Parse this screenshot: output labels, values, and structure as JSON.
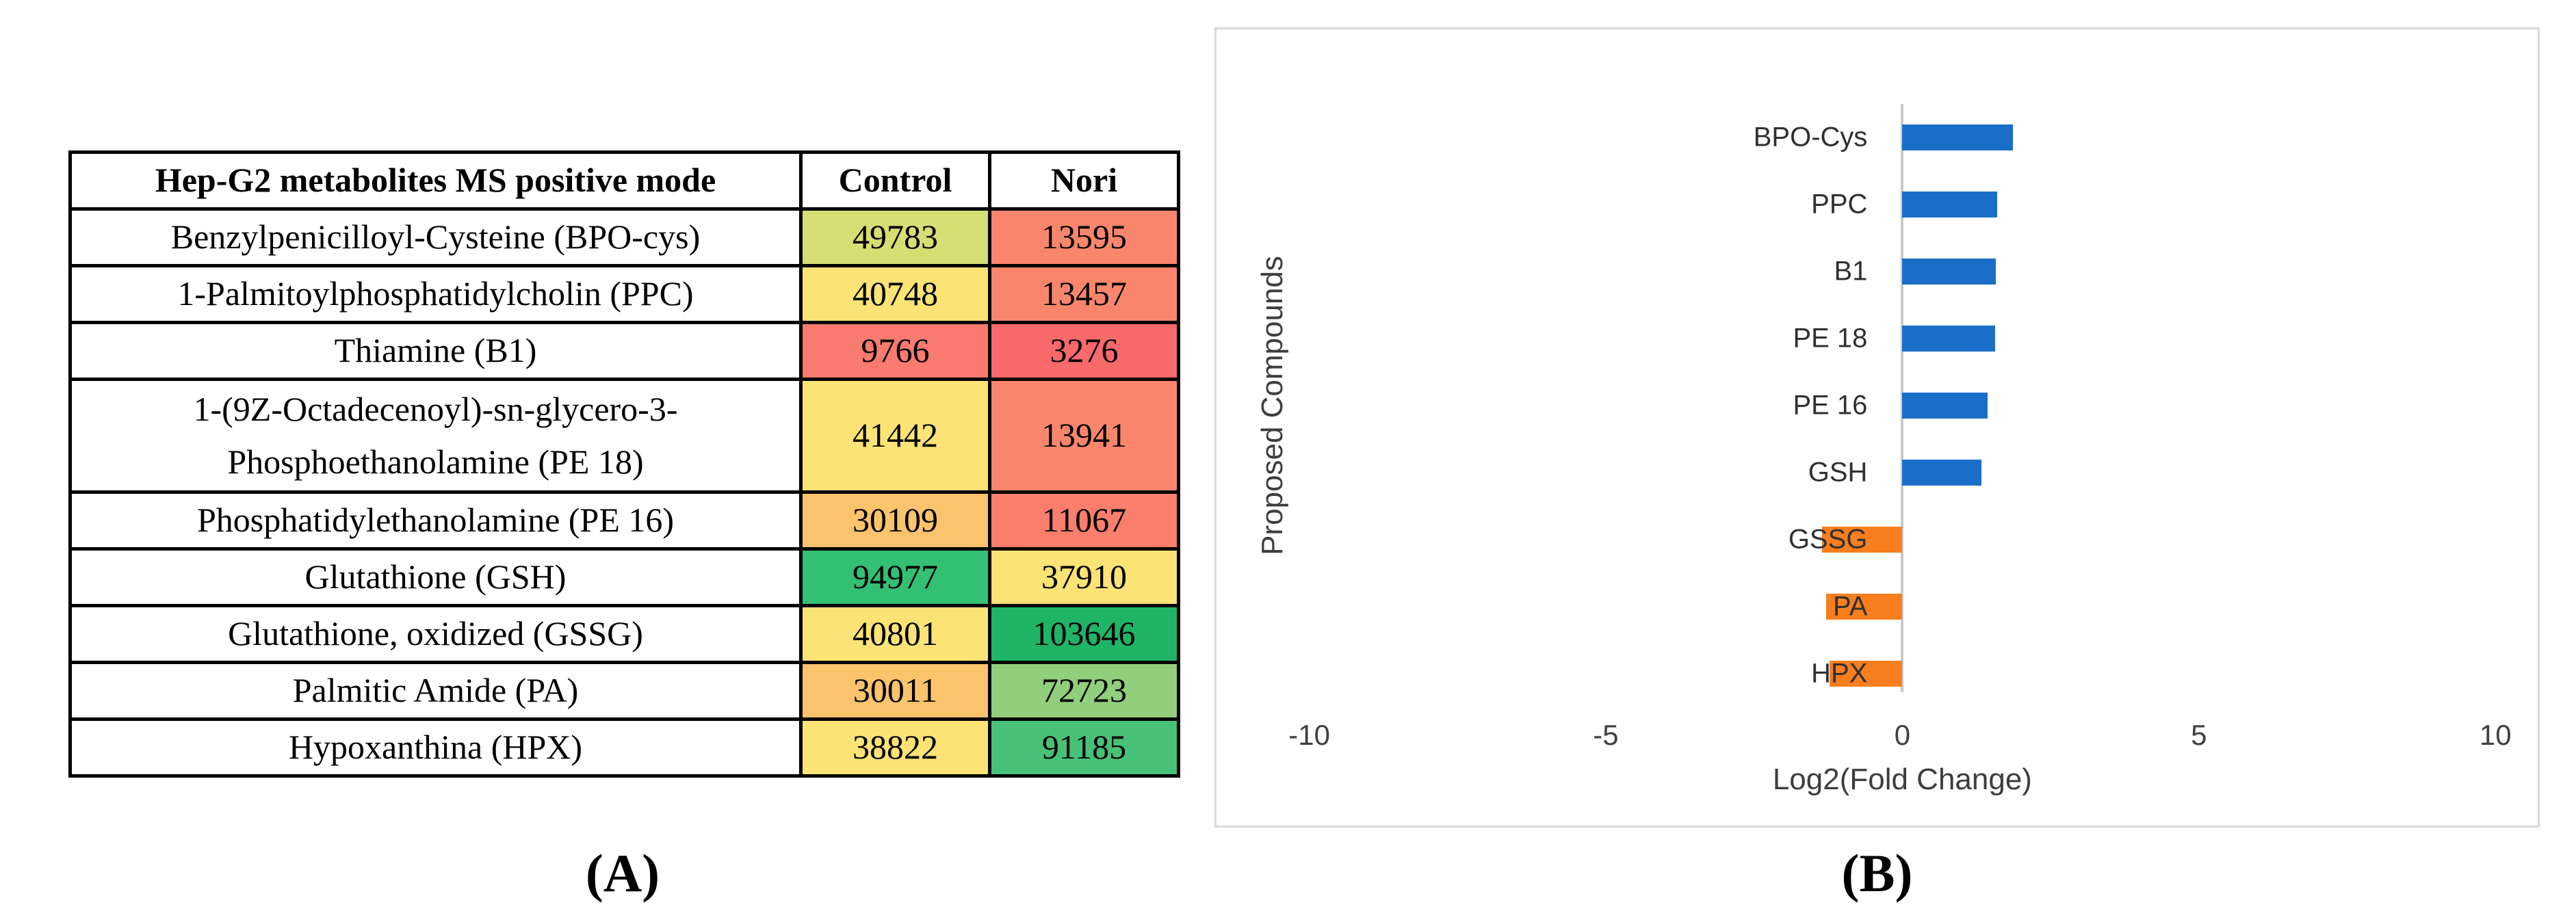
{
  "figure": {
    "panel_a": {
      "caption": "(A)",
      "table": {
        "headers": [
          "Hep-G2 metabolites MS positive mode",
          "Control",
          "Nori"
        ],
        "rows": [
          {
            "name_lines": [
              "Benzylpenicilloyl-Cysteine (BPO-cys)"
            ],
            "control": "49783",
            "control_color": "#D5DE73",
            "nori": "13595",
            "nori_color": "#F9866C"
          },
          {
            "name_lines": [
              "1-Palmitoylphosphatidylcholin  (PPC)"
            ],
            "control": "40748",
            "control_color": "#FBE375",
            "nori": "13457",
            "nori_color": "#F9866C"
          },
          {
            "name_lines": [
              "Thiamine (B1)"
            ],
            "control": "9766",
            "control_color": "#F97A6E",
            "nori": "3276",
            "nori_color": "#F8696B"
          },
          {
            "name_lines": [
              "1-(9Z-Octadecenoyl)-sn-glycero-3-",
              "Phosphoethanolamine (PE 18)"
            ],
            "control": "41442",
            "control_color": "#FBE375",
            "nori": "13941",
            "nori_color": "#F9866C"
          },
          {
            "name_lines": [
              "Phosphatidylethanolamine (PE 16)"
            ],
            "control": "30109",
            "control_color": "#FAC36C",
            "nori": "11067",
            "nori_color": "#F97E6B"
          },
          {
            "name_lines": [
              "Glutathione (GSH)"
            ],
            "control": "94977",
            "control_color": "#33BF74",
            "nori": "37910",
            "nori_color": "#FBE375"
          },
          {
            "name_lines": [
              "Glutathione, oxidized (GSSG)"
            ],
            "control": "40801",
            "control_color": "#FBE375",
            "nori": "103646",
            "nori_color": "#1FB466"
          },
          {
            "name_lines": [
              "Palmitic Amide (PA)"
            ],
            "control": "30011",
            "control_color": "#FAC36C",
            "nori": "72723",
            "nori_color": "#92CF7C"
          },
          {
            "name_lines": [
              "Hypoxanthina (HPX)"
            ],
            "control": "38822",
            "control_color": "#FBE375",
            "nori": "91185",
            "nori_color": "#46C177"
          }
        ]
      }
    },
    "panel_b": {
      "caption": "(B)"
    }
  },
  "chart_data": {
    "type": "bar",
    "orientation": "horizontal",
    "categories": [
      "BPO-Cys",
      "PPC",
      "B1",
      "PE 18",
      "PE 16",
      "GSH",
      "GSSG",
      "PA",
      "HPX"
    ],
    "values": [
      1.87,
      1.6,
      1.58,
      1.57,
      1.44,
      1.33,
      -1.35,
      -1.28,
      -1.23
    ],
    "title": "",
    "xlabel": "Log2(Fold Change)",
    "ylabel": "Proposed Compounds",
    "xlim": [
      -10,
      10
    ],
    "xticks": [
      -10,
      -5,
      0,
      5,
      10
    ],
    "positive_color": "#1B6EC8",
    "negative_color": "#F87E1E",
    "axis_line_color": "#C9C9C9",
    "frame_border_color": "#D9D9D9",
    "grid": false,
    "legend": null
  }
}
